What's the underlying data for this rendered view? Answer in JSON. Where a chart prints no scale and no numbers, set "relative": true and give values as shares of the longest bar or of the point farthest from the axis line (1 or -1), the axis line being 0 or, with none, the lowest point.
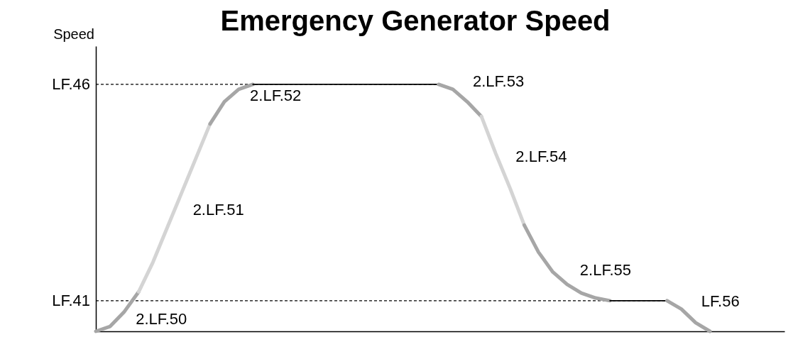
{
  "chart_data": {
    "type": "line",
    "title": "Emergency Generator Speed",
    "ylabel": "Speed",
    "relative": true,
    "grid": false,
    "tick_labels": false,
    "categories": [
      null,
      null,
      null,
      null,
      null,
      null,
      null,
      null,
      null,
      null,
      null,
      null,
      null,
      null,
      null,
      null,
      null,
      null,
      null,
      null,
      null,
      null,
      null,
      null,
      null,
      null,
      null,
      null,
      null,
      null,
      null,
      null,
      null,
      null,
      null,
      null,
      null,
      null,
      null,
      null,
      null,
      null,
      null,
      null
    ],
    "series": [
      {
        "name": "2.LF.50",
        "color": "#a6a6a6",
        "values": [
          0,
          0.02,
          0.08,
          0.16,
          null,
          null,
          null,
          null,
          null,
          null,
          null,
          null,
          null,
          null,
          null,
          null,
          null,
          null,
          null,
          null,
          null,
          null,
          null,
          null,
          null,
          null,
          null,
          null,
          null,
          null,
          null,
          null,
          null,
          null,
          null,
          null,
          null,
          null,
          null,
          null,
          null,
          null,
          null,
          null
        ]
      },
      {
        "name": "2.LF.51",
        "color": "#d4d4d4",
        "values": [
          null,
          null,
          null,
          0.16,
          0.28,
          0.42,
          0.56,
          0.7,
          0.84,
          null,
          null,
          null,
          null,
          null,
          null,
          null,
          null,
          null,
          null,
          null,
          null,
          null,
          null,
          null,
          null,
          null,
          null,
          null,
          null,
          null,
          null,
          null,
          null,
          null,
          null,
          null,
          null,
          null,
          null,
          null,
          null,
          null,
          null,
          null
        ]
      },
      {
        "name": "2.LF.52",
        "color": "#a6a6a6",
        "values": [
          null,
          null,
          null,
          null,
          null,
          null,
          null,
          null,
          0.84,
          0.93,
          0.98,
          1,
          null,
          null,
          null,
          null,
          null,
          null,
          null,
          null,
          null,
          null,
          null,
          null,
          null,
          null,
          null,
          null,
          null,
          null,
          null,
          null,
          null,
          null,
          null,
          null,
          null,
          null,
          null,
          null,
          null,
          null,
          null,
          null
        ]
      },
      {
        "color": "#000000",
        "values": [
          null,
          null,
          null,
          null,
          null,
          null,
          null,
          null,
          null,
          null,
          null,
          1,
          1,
          1,
          1,
          1,
          1,
          1,
          1,
          1,
          1,
          1,
          1,
          1,
          1,
          null,
          null,
          null,
          null,
          null,
          null,
          null,
          null,
          null,
          null,
          null,
          null,
          null,
          null,
          null,
          null,
          null,
          null,
          null
        ]
      },
      {
        "name": "2.LF.53",
        "color": "#a6a6a6",
        "values": [
          null,
          null,
          null,
          null,
          null,
          null,
          null,
          null,
          null,
          null,
          null,
          null,
          null,
          null,
          null,
          null,
          null,
          null,
          null,
          null,
          null,
          null,
          null,
          null,
          1,
          0.98,
          0.93,
          0.87,
          null,
          null,
          null,
          null,
          null,
          null,
          null,
          null,
          null,
          null,
          null,
          null,
          null,
          null,
          null,
          null
        ]
      },
      {
        "name": "2.LF.54",
        "color": "#d4d4d4",
        "values": [
          null,
          null,
          null,
          null,
          null,
          null,
          null,
          null,
          null,
          null,
          null,
          null,
          null,
          null,
          null,
          null,
          null,
          null,
          null,
          null,
          null,
          null,
          null,
          null,
          null,
          null,
          null,
          0.87,
          0.72,
          0.58,
          0.43,
          null,
          null,
          null,
          null,
          null,
          null,
          null,
          null,
          null,
          null,
          null,
          null,
          null
        ]
      },
      {
        "name": "2.LF.55",
        "color": "#a6a6a6",
        "values": [
          null,
          null,
          null,
          null,
          null,
          null,
          null,
          null,
          null,
          null,
          null,
          null,
          null,
          null,
          null,
          null,
          null,
          null,
          null,
          null,
          null,
          null,
          null,
          null,
          null,
          null,
          null,
          null,
          null,
          null,
          0.43,
          0.32,
          0.24,
          0.19,
          0.155,
          0.135,
          0.124,
          null,
          null,
          null,
          null,
          null,
          null,
          null
        ]
      },
      {
        "color": "#000000",
        "values": [
          null,
          null,
          null,
          null,
          null,
          null,
          null,
          null,
          null,
          null,
          null,
          null,
          null,
          null,
          null,
          null,
          null,
          null,
          null,
          null,
          null,
          null,
          null,
          null,
          null,
          null,
          null,
          null,
          null,
          null,
          null,
          null,
          null,
          null,
          null,
          null,
          0.124,
          0.124,
          0.124,
          0.124,
          0.124,
          null,
          null,
          null
        ]
      },
      {
        "name": "LF.56",
        "color": "#a6a6a6",
        "values": [
          null,
          null,
          null,
          null,
          null,
          null,
          null,
          null,
          null,
          null,
          null,
          null,
          null,
          null,
          null,
          null,
          null,
          null,
          null,
          null,
          null,
          null,
          null,
          null,
          null,
          null,
          null,
          null,
          null,
          null,
          null,
          null,
          null,
          null,
          null,
          null,
          null,
          null,
          null,
          null,
          0.124,
          0.09,
          0.035,
          0
        ]
      }
    ],
    "ref_lines": [
      {
        "axis": "y",
        "value": 1,
        "label": "LF.46",
        "line_style": "dashed",
        "color": "#000000"
      },
      {
        "axis": "y",
        "value": 0.124,
        "label": "LF.41",
        "line_style": "dashed",
        "color": "#000000"
      }
    ]
  }
}
